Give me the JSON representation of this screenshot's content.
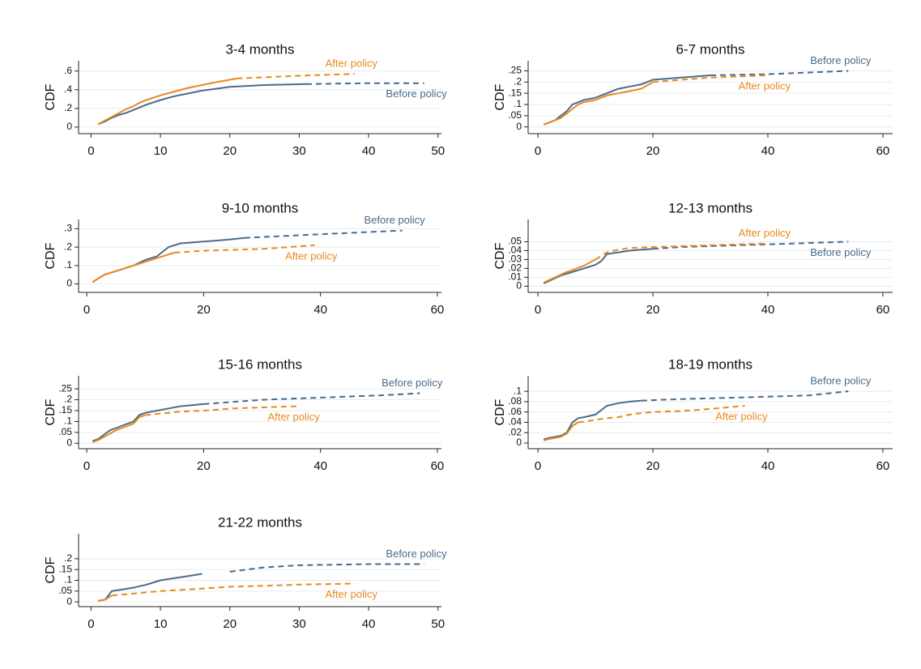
{
  "chart_data": [
    {
      "type": "line",
      "title": "3-4 months",
      "y_label": "CDF",
      "xlim": [
        -1.8,
        50.5
      ],
      "xticks": [
        0,
        10,
        20,
        30,
        40,
        50
      ],
      "ylim": [
        -0.07,
        0.71
      ],
      "yticks": [
        0,
        {
          "value": 0.2,
          "label": ".2"
        },
        {
          "value": 0.4,
          "label": ".4"
        },
        {
          "value": 0.6,
          "label": ".6"
        }
      ],
      "grid": true,
      "series": [
        {
          "name": "Before policy",
          "color": "#4a6b8a",
          "label_position": "below",
          "dashed_from": 31,
          "x": [
            1,
            2,
            3,
            4,
            5,
            6,
            7,
            8,
            10,
            12,
            14,
            16,
            18,
            20,
            25,
            31,
            40,
            48
          ],
          "values": [
            0.03,
            0.06,
            0.1,
            0.13,
            0.15,
            0.18,
            0.21,
            0.24,
            0.29,
            0.33,
            0.36,
            0.39,
            0.41,
            0.43,
            0.45,
            0.46,
            0.47,
            0.47
          ]
        },
        {
          "name": "After policy",
          "color": "#e8891d",
          "label_position": "above",
          "dashed_from": 21,
          "x": [
            1,
            2,
            3,
            4,
            5,
            6,
            7,
            8,
            10,
            12,
            14,
            16,
            18,
            21,
            30,
            38
          ],
          "values": [
            0.03,
            0.07,
            0.11,
            0.15,
            0.19,
            0.22,
            0.26,
            0.29,
            0.34,
            0.38,
            0.42,
            0.45,
            0.48,
            0.52,
            0.55,
            0.57
          ]
        }
      ]
    },
    {
      "type": "line",
      "title": "6-7 months",
      "y_label": "CDF",
      "xlim": [
        -1.7,
        61.7
      ],
      "xticks": [
        0,
        20,
        40,
        60
      ],
      "ylim": [
        -0.03,
        0.295
      ],
      "yticks": [
        0,
        {
          "value": 0.05,
          "label": ".05"
        },
        {
          "value": 0.1,
          "label": ".1"
        },
        {
          "value": 0.15,
          "label": ".15"
        },
        {
          "value": 0.2,
          "label": ".2"
        },
        {
          "value": 0.25,
          "label": ".25"
        }
      ],
      "grid": true,
      "series": [
        {
          "name": "Before policy",
          "color": "#4a6b8a",
          "label_position": "above",
          "dashed_from": 30,
          "x": [
            1,
            2,
            3,
            4,
            5,
            6,
            7,
            8,
            10,
            12,
            14,
            16,
            18,
            20,
            25,
            30,
            40,
            54
          ],
          "values": [
            0.01,
            0.02,
            0.03,
            0.05,
            0.07,
            0.1,
            0.11,
            0.12,
            0.13,
            0.15,
            0.17,
            0.18,
            0.19,
            0.21,
            0.22,
            0.23,
            0.235,
            0.25
          ]
        },
        {
          "name": "After policy",
          "color": "#e8891d",
          "label_position": "below",
          "dashed_from": 20,
          "x": [
            1,
            2,
            3,
            4,
            5,
            6,
            7,
            8,
            10,
            12,
            14,
            16,
            18,
            20,
            25,
            30,
            40
          ],
          "values": [
            0.01,
            0.02,
            0.03,
            0.04,
            0.06,
            0.08,
            0.1,
            0.11,
            0.12,
            0.14,
            0.15,
            0.16,
            0.17,
            0.2,
            0.21,
            0.22,
            0.23
          ]
        }
      ]
    },
    {
      "type": "line",
      "title": "9-10 months",
      "y_label": "CDF",
      "xlim": [
        -1.4,
        60.7
      ],
      "xticks": [
        0,
        20,
        40,
        60
      ],
      "ylim": [
        -0.046,
        0.35
      ],
      "yticks": [
        0,
        {
          "value": 0.1,
          "label": ".1"
        },
        {
          "value": 0.2,
          "label": ".2"
        },
        {
          "value": 0.3,
          "label": ".3"
        }
      ],
      "grid": true,
      "series": [
        {
          "name": "Before policy",
          "color": "#4a6b8a",
          "label_position": "above",
          "dashed_from": 27,
          "x": [
            1,
            2,
            3,
            4,
            6,
            8,
            10,
            12,
            14,
            16,
            20,
            24,
            27,
            40,
            54
          ],
          "values": [
            0.01,
            0.03,
            0.05,
            0.06,
            0.08,
            0.1,
            0.13,
            0.15,
            0.2,
            0.22,
            0.23,
            0.24,
            0.25,
            0.27,
            0.29
          ]
        },
        {
          "name": "After policy",
          "color": "#e8891d",
          "label_position": "below",
          "dashed_from": 15,
          "x": [
            1,
            2,
            3,
            4,
            6,
            8,
            10,
            12,
            15,
            20,
            30,
            39
          ],
          "values": [
            0.01,
            0.03,
            0.05,
            0.06,
            0.08,
            0.1,
            0.12,
            0.14,
            0.17,
            0.18,
            0.19,
            0.21
          ]
        }
      ]
    },
    {
      "type": "line",
      "title": "12-13 months",
      "y_label": "CDF",
      "xlim": [
        -1.7,
        61.7
      ],
      "xticks": [
        0,
        20,
        40,
        60
      ],
      "ylim": [
        -0.007,
        0.075
      ],
      "yticks": [
        0,
        {
          "value": 0.01,
          "label": ".01"
        },
        {
          "value": 0.02,
          "label": ".02"
        },
        {
          "value": 0.03,
          "label": ".03"
        },
        {
          "value": 0.04,
          "label": ".04"
        },
        {
          "value": 0.05,
          "label": ".05"
        }
      ],
      "grid": true,
      "series": [
        {
          "name": "Before policy",
          "color": "#4a6b8a",
          "label_position": "below",
          "dashed_from": 20,
          "x": [
            1,
            2,
            3,
            4,
            5,
            6,
            8,
            10,
            11,
            12,
            14,
            16,
            18,
            20,
            25,
            30,
            40,
            54
          ],
          "values": [
            0.003,
            0.006,
            0.009,
            0.012,
            0.014,
            0.016,
            0.02,
            0.024,
            0.028,
            0.036,
            0.038,
            0.04,
            0.041,
            0.042,
            0.044,
            0.045,
            0.047,
            0.05
          ]
        },
        {
          "name": "After policy",
          "color": "#e8891d",
          "label_position": "above",
          "dashed_from": 10,
          "x": [
            1,
            2,
            3,
            4,
            5,
            6,
            8,
            10,
            12,
            14,
            16,
            20,
            25,
            30,
            40
          ],
          "values": [
            0.004,
            0.007,
            0.01,
            0.013,
            0.016,
            0.018,
            0.023,
            0.03,
            0.038,
            0.041,
            0.043,
            0.044,
            0.045,
            0.046,
            0.048
          ]
        }
      ]
    },
    {
      "type": "line",
      "title": "15-16 months",
      "y_label": "CDF",
      "xlim": [
        -1.4,
        60.7
      ],
      "xticks": [
        0,
        20,
        40,
        60
      ],
      "ylim": [
        -0.025,
        0.31
      ],
      "yticks": [
        0,
        {
          "value": 0.05,
          "label": ".05"
        },
        {
          "value": 0.1,
          "label": ".1"
        },
        {
          "value": 0.15,
          "label": ".15"
        },
        {
          "value": 0.2,
          "label": ".2"
        },
        {
          "value": 0.25,
          "label": ".25"
        }
      ],
      "grid": true,
      "series": [
        {
          "name": "Before policy",
          "color": "#4a6b8a",
          "label_position": "above",
          "dashed_from": 20,
          "x": [
            1,
            2,
            3,
            4,
            5,
            6,
            7,
            8,
            9,
            10,
            12,
            14,
            16,
            18,
            20,
            25,
            30,
            40,
            50,
            57
          ],
          "values": [
            0.01,
            0.02,
            0.04,
            0.06,
            0.07,
            0.08,
            0.09,
            0.1,
            0.13,
            0.14,
            0.15,
            0.16,
            0.17,
            0.175,
            0.18,
            0.19,
            0.2,
            0.21,
            0.22,
            0.23
          ]
        },
        {
          "name": "After policy",
          "color": "#e8891d",
          "label_position": "below",
          "dashed_from": 10,
          "x": [
            1,
            2,
            3,
            4,
            5,
            6,
            7,
            8,
            9,
            10,
            12,
            14,
            16,
            20,
            25,
            30,
            36
          ],
          "values": [
            0.005,
            0.015,
            0.03,
            0.045,
            0.06,
            0.07,
            0.08,
            0.09,
            0.12,
            0.13,
            0.135,
            0.14,
            0.145,
            0.15,
            0.16,
            0.165,
            0.17
          ]
        }
      ]
    },
    {
      "type": "line",
      "title": "18-19 months",
      "y_label": "CDF",
      "xlim": [
        -1.7,
        61.7
      ],
      "xticks": [
        0,
        20,
        40,
        60
      ],
      "ylim": [
        -0.011,
        0.13
      ],
      "yticks": [
        0,
        {
          "value": 0.02,
          "label": ".02"
        },
        {
          "value": 0.04,
          "label": ".04"
        },
        {
          "value": 0.06,
          "label": ".06"
        },
        {
          "value": 0.08,
          "label": ".08"
        },
        {
          "value": 0.1,
          "label": ".1"
        }
      ],
      "grid": true,
      "series": [
        {
          "name": "Before policy",
          "color": "#4a6b8a",
          "label_position": "above",
          "dashed_from": 18,
          "x": [
            1,
            2,
            3,
            4,
            5,
            6,
            7,
            8,
            10,
            12,
            14,
            16,
            18,
            25,
            35,
            47,
            54
          ],
          "values": [
            0.007,
            0.01,
            0.012,
            0.014,
            0.02,
            0.04,
            0.048,
            0.05,
            0.055,
            0.072,
            0.077,
            0.08,
            0.082,
            0.085,
            0.088,
            0.092,
            0.1
          ]
        },
        {
          "name": "After policy",
          "color": "#e8891d",
          "label_position": "below",
          "dashed_from": 7,
          "x": [
            1,
            2,
            3,
            4,
            5,
            6,
            7,
            8,
            10,
            12,
            14,
            16,
            18,
            20,
            25,
            30,
            36
          ],
          "values": [
            0.005,
            0.008,
            0.01,
            0.012,
            0.018,
            0.033,
            0.04,
            0.041,
            0.045,
            0.048,
            0.05,
            0.055,
            0.058,
            0.06,
            0.062,
            0.066,
            0.072
          ]
        }
      ]
    },
    {
      "type": "line",
      "title": "21-22 months",
      "y_label": "CDF",
      "xlim": [
        -1.8,
        50.5
      ],
      "xticks": [
        0,
        10,
        20,
        30,
        40,
        50
      ],
      "ylim": [
        -0.022,
        0.316
      ],
      "yticks": [
        0,
        {
          "value": 0.05,
          "label": ".05"
        },
        {
          "value": 0.1,
          "label": ".1"
        },
        {
          "value": 0.15,
          "label": ".15"
        },
        {
          "value": 0.2,
          "label": ".2"
        }
      ],
      "grid": true,
      "series": [
        {
          "name": "Before policy",
          "color": "#4a6b8a",
          "label_position": "above",
          "dashed_from": 17,
          "x": [
            1,
            2,
            3,
            4,
            6,
            8,
            10,
            12,
            14,
            16,
            20,
            25,
            30,
            40,
            48
          ],
          "values": [
            0.005,
            0.01,
            0.05,
            0.055,
            0.065,
            0.08,
            0.1,
            0.11,
            0.12,
            0.13,
            0.14,
            0.16,
            0.17,
            0.175,
            0.175
          ]
        },
        {
          "name": "After policy",
          "color": "#e8891d",
          "label_position": "below",
          "dashed_from": 3,
          "x": [
            1,
            2,
            3,
            5,
            10,
            15,
            20,
            25,
            30,
            38
          ],
          "values": [
            0.005,
            0.01,
            0.03,
            0.035,
            0.05,
            0.06,
            0.07,
            0.075,
            0.08,
            0.085
          ]
        }
      ]
    }
  ]
}
